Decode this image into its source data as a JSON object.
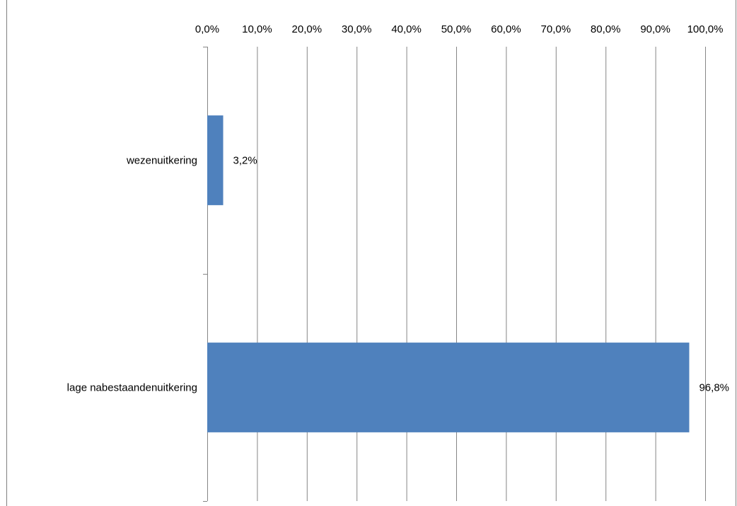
{
  "chart_data": {
    "type": "bar",
    "orientation": "horizontal",
    "categories": [
      "wezenuitkering",
      "lage nabestaandenuitkering"
    ],
    "values": [
      3.2,
      96.8
    ],
    "data_labels": [
      "3,2%",
      "96,8%"
    ],
    "xlim": [
      0,
      100
    ],
    "x_ticks": [
      0,
      10,
      20,
      30,
      40,
      50,
      60,
      70,
      80,
      90,
      100
    ],
    "x_tick_labels": [
      "0,0%",
      "10,0%",
      "20,0%",
      "30,0%",
      "40,0%",
      "50,0%",
      "60,0%",
      "70,0%",
      "80,0%",
      "90,0%",
      "100,0%"
    ],
    "x_axis_position": "top",
    "grid": true,
    "legend": false,
    "bar_color": "#4f81bd",
    "grid_color": "#868686",
    "title": "",
    "xlabel": "",
    "ylabel": ""
  }
}
